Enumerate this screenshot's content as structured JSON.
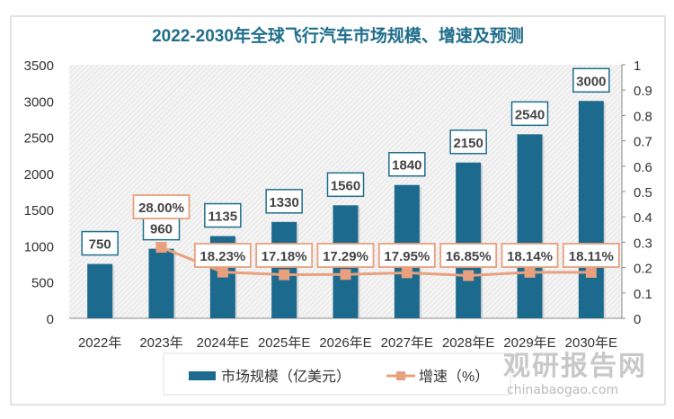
{
  "chart_data": {
    "type": "bar+line",
    "title": "2022-2030年全球飞行汽车市场规模、增速及预测",
    "categories": [
      "2022年",
      "2023年",
      "2024年E",
      "2025年E",
      "2026年E",
      "2027年E",
      "2028年E",
      "2029年E",
      "2030年E"
    ],
    "series": [
      {
        "name": "市场规模（亿美元）",
        "type": "bar",
        "axis": "left",
        "values": [
          750,
          960,
          1135,
          1330,
          1560,
          1840,
          2150,
          2540,
          3000
        ],
        "color": "#1c6a8d"
      },
      {
        "name": "增速（%）",
        "type": "line",
        "axis": "right",
        "values": [
          null,
          0.28,
          0.1823,
          0.1718,
          0.1729,
          0.1795,
          0.1685,
          0.1814,
          0.1811
        ],
        "labels": [
          "",
          "28.00%",
          "18.23%",
          "17.18%",
          "17.29%",
          "17.95%",
          "16.85%",
          "18.14%",
          "18.11%"
        ],
        "color": "#e9a07e"
      }
    ],
    "y_left": {
      "ylim": [
        0,
        3500
      ],
      "ticks": [
        "0",
        "500",
        "1000",
        "1500",
        "2000",
        "2500",
        "3000",
        "3500"
      ]
    },
    "y_right": {
      "ylim": [
        0,
        1
      ],
      "ticks": [
        "0",
        "0.1",
        "0.2",
        "0.3",
        "0.4",
        "0.5",
        "0.6",
        "0.7",
        "0.8",
        "0.9",
        "1"
      ]
    },
    "legend": "bottom",
    "grid": false,
    "title_color": "#1f6e8c"
  },
  "watermark": {
    "name": "观研报告网",
    "url": "chinabaogao.com"
  }
}
